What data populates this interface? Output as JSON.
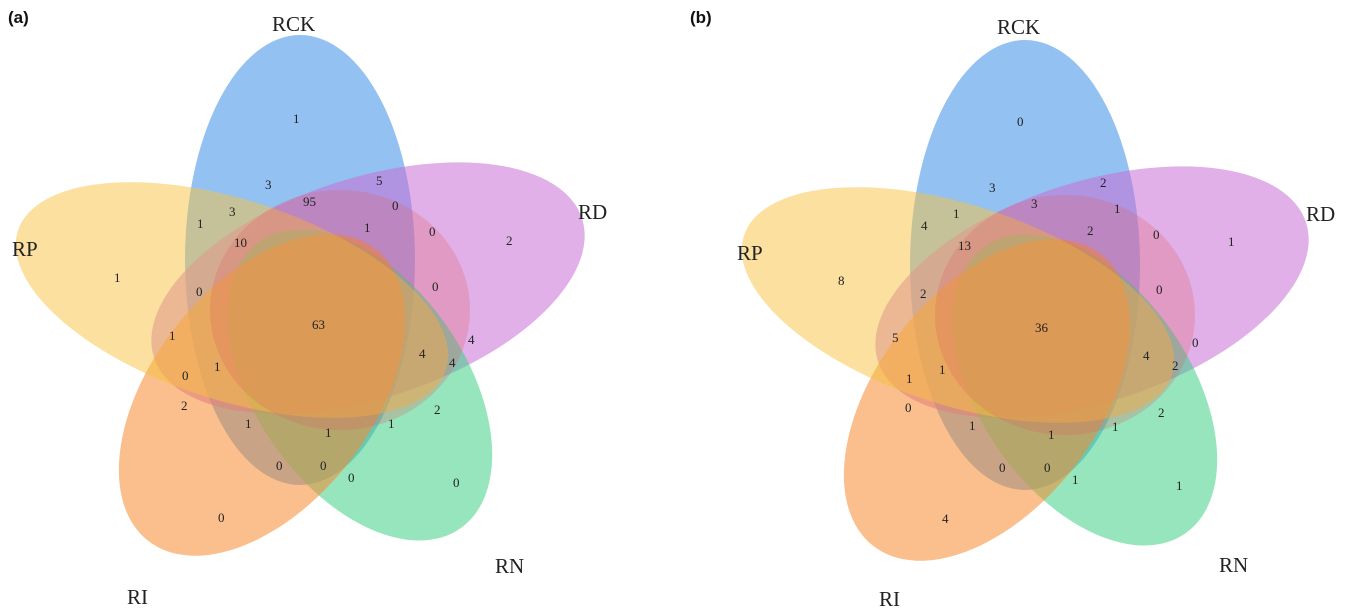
{
  "panels": [
    {
      "letter": "(a)",
      "set_labels": {
        "rck": "RCK",
        "rd": "RD",
        "rn": "RN",
        "ri": "RI",
        "rp": "RP"
      },
      "counts": {
        "only_rck": "1",
        "rck_rp_a": "3",
        "rck_rp_b": "3",
        "rck_rd_a": "5",
        "rck_rd_b": "0",
        "rck_rd_big": "95",
        "rp_rck": "1",
        "rp_10": "10",
        "inner_1": "1",
        "rd_0a": "0",
        "only_rd": "2",
        "only_rp": "1",
        "rp_0": "0",
        "rd_0b": "0",
        "core": "63",
        "rp_1": "1",
        "rn_4a": "4",
        "rn_4b": "4",
        "rn_4c": "4",
        "rp_0b": "0",
        "ri_1a": "1",
        "ri_2": "2",
        "rn_2": "2",
        "ri_1b": "1",
        "ri_1c": "1",
        "rn_1": "1",
        "ri_0a": "0",
        "ri_0b": "0",
        "ri_0c": "0",
        "only_rn": "0",
        "only_ri": "0"
      }
    },
    {
      "letter": "(b)",
      "set_labels": {
        "rck": "RCK",
        "rd": "RD",
        "rn": "RN",
        "ri": "RI",
        "rp": "RP"
      },
      "counts": {
        "only_rck": "0",
        "rck_rp_a": "3",
        "rck_rp_b": "1",
        "rck_rd_a": "2",
        "rck_rd_b": "1",
        "rck_rd_big": "3",
        "rp_rck": "4",
        "rp_10": "13",
        "inner_1": "2",
        "rd_0a": "0",
        "only_rd": "1",
        "only_rp": "8",
        "rp_0": "2",
        "rd_0b": "0",
        "core": "36",
        "rp_1": "5",
        "rn_4a": "4",
        "rn_4b": "2",
        "rn_4c": "0",
        "rp_0b": "1",
        "ri_1a": "1",
        "ri_2": "0",
        "rn_2": "2",
        "ri_1b": "1",
        "ri_1c": "1",
        "rn_1": "1",
        "ri_0a": "0",
        "ri_0b": "0",
        "ri_0c": "1",
        "only_rn": "1",
        "only_ri": "4"
      }
    }
  ],
  "colors": {
    "rck": "#3a8ee8",
    "rd": "#c96fd6",
    "rn": "#3fcf86",
    "ri": "#f58a2e",
    "rp": "#f7c240",
    "inner_rd_band": "#e05a5a"
  }
}
